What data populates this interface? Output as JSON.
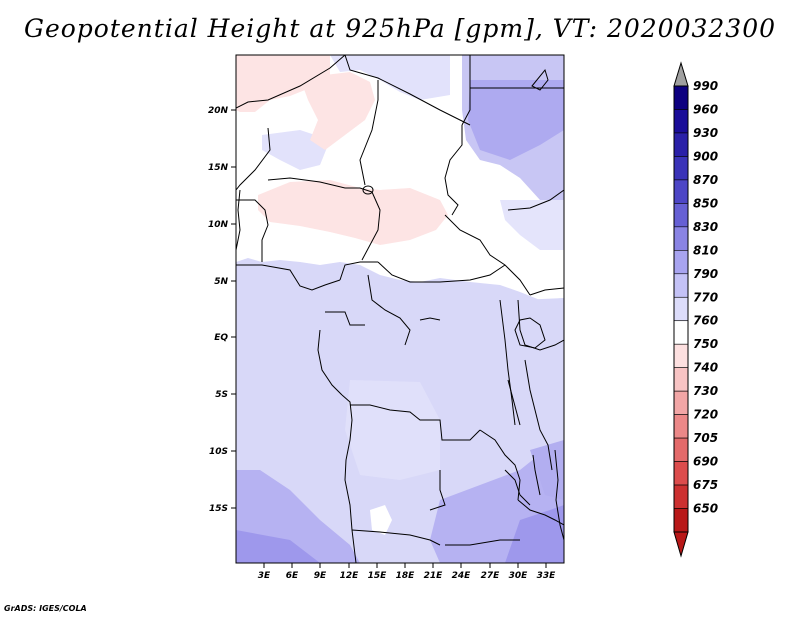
{
  "title": "Geopotential Height at 925hPa [gpm], VT: 2020032300",
  "credit": "GrADS: IGES/COLA",
  "map": {
    "lat_ticks": [
      "20N",
      "15N",
      "10N",
      "5N",
      "EQ",
      "5S",
      "10S",
      "15S"
    ],
    "lon_ticks": [
      "3E",
      "6E",
      "9E",
      "12E",
      "15E",
      "18E",
      "21E",
      "24E",
      "27E",
      "30E",
      "33E"
    ]
  },
  "colorbar": {
    "levels": [
      {
        "label": "990",
        "color": "#0d0080"
      },
      {
        "label": "960",
        "color": "#1a0d99"
      },
      {
        "label": "930",
        "color": "#2a20a8"
      },
      {
        "label": "900",
        "color": "#3a33b8"
      },
      {
        "label": "870",
        "color": "#4d46c6"
      },
      {
        "label": "850",
        "color": "#6660d4"
      },
      {
        "label": "830",
        "color": "#8a84e4"
      },
      {
        "label": "810",
        "color": "#a8a4f0"
      },
      {
        "label": "790",
        "color": "#c4c2f6"
      },
      {
        "label": "770",
        "color": "#dcdcfa"
      },
      {
        "label": "760",
        "color": "#ffffff"
      },
      {
        "label": "750",
        "color": "#fde0e0"
      },
      {
        "label": "740",
        "color": "#f8c4c4"
      },
      {
        "label": "730",
        "color": "#f2a6a6"
      },
      {
        "label": "720",
        "color": "#ec8888"
      },
      {
        "label": "705",
        "color": "#e46a6a"
      },
      {
        "label": "690",
        "color": "#dc4c4c"
      },
      {
        "label": "675",
        "color": "#cc3030"
      },
      {
        "label": "650",
        "color": "#b81818"
      }
    ],
    "over_color": "#a0a0a0",
    "under_color": "#b81818"
  }
}
